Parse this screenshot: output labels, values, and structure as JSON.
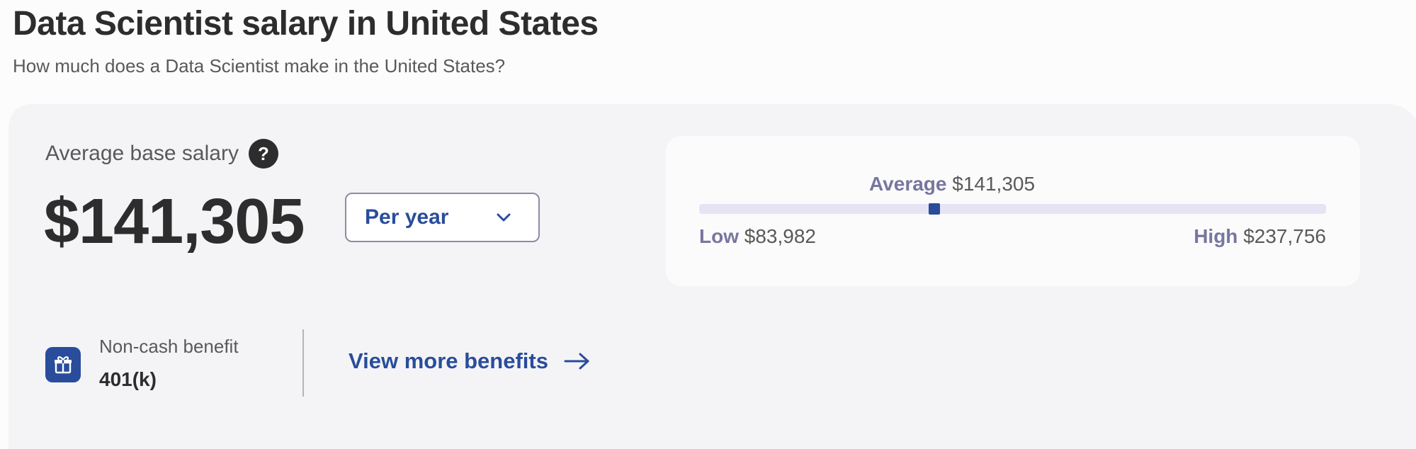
{
  "header": {
    "title": "Data Scientist salary in United States",
    "subtitle": "How much does a Data Scientist make in the United States?"
  },
  "salary": {
    "label": "Average base salary",
    "help_icon_glyph": "?",
    "amount": "$141,305",
    "period": "Per year"
  },
  "range": {
    "average_key": "Average",
    "average_value": "$141,305",
    "low_key": "Low",
    "low_value": "$83,982",
    "high_key": "High",
    "high_value": "$237,756",
    "average_position_fraction": 0.375
  },
  "benefits": {
    "caption": "Non-cash benefit",
    "value": "401(k)",
    "link_label": "View more benefits"
  },
  "icons": {
    "help": "help-icon",
    "dropdown": "chevron-down-icon",
    "benefit": "gift-icon",
    "link": "arrow-right-icon"
  },
  "colors": {
    "accent": "#2a4d9b",
    "text_dark": "#2d2d2d",
    "muted": "#595959",
    "range_key": "#7776a0",
    "track": "#e4e4f4",
    "card_bg": "#f4f4f6"
  }
}
